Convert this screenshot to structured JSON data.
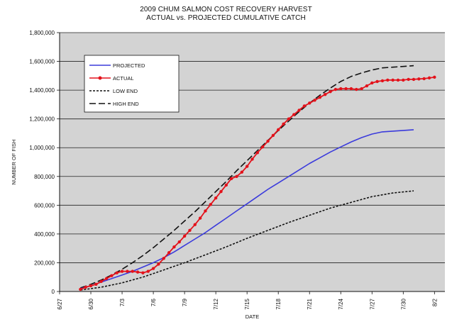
{
  "chart_data": {
    "type": "line",
    "title": "2009 CHUM SALMON COST RECOVERY HARVEST",
    "subtitle": "ACTUAL vs. PROJECTED CUMULATIVE CATCH",
    "xlabel": "DATE",
    "ylabel": "NUMBER OF FISH",
    "ylim": [
      0,
      1800000
    ],
    "yticks": [
      0,
      200000,
      400000,
      600000,
      800000,
      1000000,
      1200000,
      1400000,
      1600000,
      1800000
    ],
    "ytick_labels": [
      "0",
      "200,000",
      "400,000",
      "600,000",
      "800,000",
      "1,000,000",
      "1,200,000",
      "1,400,000",
      "1,600,000",
      "1,800,000"
    ],
    "xlim": [
      "2009-06-27",
      "2009-08-03"
    ],
    "xticks": [
      "2009-06-27",
      "2009-06-30",
      "2009-07-03",
      "2009-07-06",
      "2009-07-09",
      "2009-07-12",
      "2009-07-15",
      "2009-07-18",
      "2009-07-21",
      "2009-07-24",
      "2009-07-27",
      "2009-07-30",
      "2009-08-02"
    ],
    "xtick_labels": [
      "6/27",
      "6/30",
      "7/3",
      "7/6",
      "7/9",
      "7/12",
      "7/15",
      "7/18",
      "7/21",
      "7/24",
      "7/27",
      "7/30",
      "8/2"
    ],
    "grid": true,
    "legend_position": "top-left",
    "series": [
      {
        "name": "PROJECTED",
        "style": "solid",
        "color": "#3b3bdc",
        "x": [
          "2009-06-29",
          "2009-06-30",
          "2009-07-01",
          "2009-07-02",
          "2009-07-03",
          "2009-07-04",
          "2009-07-05",
          "2009-07-06",
          "2009-07-07",
          "2009-07-08",
          "2009-07-09",
          "2009-07-10",
          "2009-07-11",
          "2009-07-12",
          "2009-07-13",
          "2009-07-14",
          "2009-07-15",
          "2009-07-16",
          "2009-07-17",
          "2009-07-18",
          "2009-07-19",
          "2009-07-20",
          "2009-07-21",
          "2009-07-22",
          "2009-07-23",
          "2009-07-24",
          "2009-07-25",
          "2009-07-26",
          "2009-07-27",
          "2009-07-28",
          "2009-07-29",
          "2009-07-30",
          "2009-07-31"
        ],
        "y": [
          20000,
          40000,
          65000,
          90000,
          115000,
          140000,
          170000,
          200000,
          235000,
          275000,
          320000,
          365000,
          410000,
          460000,
          510000,
          560000,
          610000,
          660000,
          710000,
          755000,
          800000,
          845000,
          890000,
          930000,
          970000,
          1005000,
          1040000,
          1070000,
          1095000,
          1110000,
          1115000,
          1120000,
          1125000
        ]
      },
      {
        "name": "ACTUAL",
        "style": "solid-markers",
        "color": "#e3121b",
        "x": [
          "2009-06-29",
          "2009-06-29T12:00",
          "2009-06-30",
          "2009-06-30T12:00",
          "2009-07-01",
          "2009-07-01T12:00",
          "2009-07-02",
          "2009-07-02T12:00",
          "2009-07-03",
          "2009-07-03T12:00",
          "2009-07-04",
          "2009-07-04T12:00",
          "2009-07-05",
          "2009-07-05T12:00",
          "2009-07-06",
          "2009-07-06T12:00",
          "2009-07-07",
          "2009-07-07T12:00",
          "2009-07-08",
          "2009-07-08T12:00",
          "2009-07-09",
          "2009-07-09T12:00",
          "2009-07-10",
          "2009-07-10T12:00",
          "2009-07-11",
          "2009-07-11T12:00",
          "2009-07-12",
          "2009-07-12T12:00",
          "2009-07-13",
          "2009-07-13T12:00",
          "2009-07-14",
          "2009-07-14T12:00",
          "2009-07-15",
          "2009-07-15T12:00",
          "2009-07-16",
          "2009-07-16T12:00",
          "2009-07-17",
          "2009-07-17T12:00",
          "2009-07-18",
          "2009-07-18T12:00",
          "2009-07-19",
          "2009-07-19T12:00",
          "2009-07-20",
          "2009-07-20T12:00",
          "2009-07-21",
          "2009-07-21T12:00",
          "2009-07-22",
          "2009-07-22T12:00",
          "2009-07-23",
          "2009-07-23T12:00",
          "2009-07-24",
          "2009-07-24T12:00",
          "2009-07-25",
          "2009-07-25T12:00",
          "2009-07-26",
          "2009-07-26T12:00",
          "2009-07-27",
          "2009-07-27T12:00",
          "2009-07-28",
          "2009-07-28T12:00",
          "2009-07-29",
          "2009-07-29T12:00",
          "2009-07-30",
          "2009-07-30T12:00",
          "2009-07-31",
          "2009-07-31T12:00",
          "2009-08-01",
          "2009-08-01T12:00",
          "2009-08-02"
        ],
        "y": [
          15000,
          30000,
          40000,
          50000,
          70000,
          90000,
          110000,
          130000,
          140000,
          140000,
          140000,
          135000,
          130000,
          140000,
          160000,
          190000,
          230000,
          270000,
          310000,
          345000,
          385000,
          425000,
          465000,
          510000,
          560000,
          605000,
          650000,
          695000,
          740000,
          785000,
          800000,
          830000,
          870000,
          920000,
          965000,
          1005000,
          1045000,
          1085000,
          1125000,
          1165000,
          1200000,
          1230000,
          1260000,
          1290000,
          1310000,
          1330000,
          1350000,
          1370000,
          1390000,
          1405000,
          1410000,
          1410000,
          1410000,
          1405000,
          1410000,
          1430000,
          1450000,
          1460000,
          1465000,
          1470000,
          1470000,
          1470000,
          1470000,
          1475000,
          1475000,
          1478000,
          1480000,
          1485000,
          1490000
        ]
      },
      {
        "name": "LOW END",
        "style": "dotted",
        "color": "#111111",
        "x": [
          "2009-06-29",
          "2009-07-01",
          "2009-07-03",
          "2009-07-05",
          "2009-07-07",
          "2009-07-09",
          "2009-07-11",
          "2009-07-13",
          "2009-07-15",
          "2009-07-17",
          "2009-07-19",
          "2009-07-21",
          "2009-07-23",
          "2009-07-25",
          "2009-07-27",
          "2009-07-29",
          "2009-07-31"
        ],
        "y": [
          10000,
          30000,
          60000,
          100000,
          150000,
          200000,
          255000,
          310000,
          370000,
          425000,
          480000,
          530000,
          580000,
          620000,
          660000,
          685000,
          700000
        ]
      },
      {
        "name": "HIGH END",
        "style": "dashed",
        "color": "#111111",
        "x": [
          "2009-06-29",
          "2009-06-30",
          "2009-07-01",
          "2009-07-02",
          "2009-07-03",
          "2009-07-04",
          "2009-07-05",
          "2009-07-06",
          "2009-07-07",
          "2009-07-08",
          "2009-07-09",
          "2009-07-10",
          "2009-07-11",
          "2009-07-12",
          "2009-07-13",
          "2009-07-14",
          "2009-07-15",
          "2009-07-16",
          "2009-07-17",
          "2009-07-18",
          "2009-07-19",
          "2009-07-20",
          "2009-07-21",
          "2009-07-22",
          "2009-07-23",
          "2009-07-24",
          "2009-07-25",
          "2009-07-26",
          "2009-07-27",
          "2009-07-28",
          "2009-07-29",
          "2009-07-30",
          "2009-07-31"
        ],
        "y": [
          25000,
          50000,
          80000,
          115000,
          155000,
          200000,
          250000,
          305000,
          365000,
          425000,
          490000,
          555000,
          625000,
          695000,
          765000,
          840000,
          910000,
          980000,
          1050000,
          1120000,
          1185000,
          1250000,
          1310000,
          1365000,
          1415000,
          1460000,
          1495000,
          1520000,
          1540000,
          1555000,
          1560000,
          1565000,
          1570000
        ]
      }
    ]
  }
}
